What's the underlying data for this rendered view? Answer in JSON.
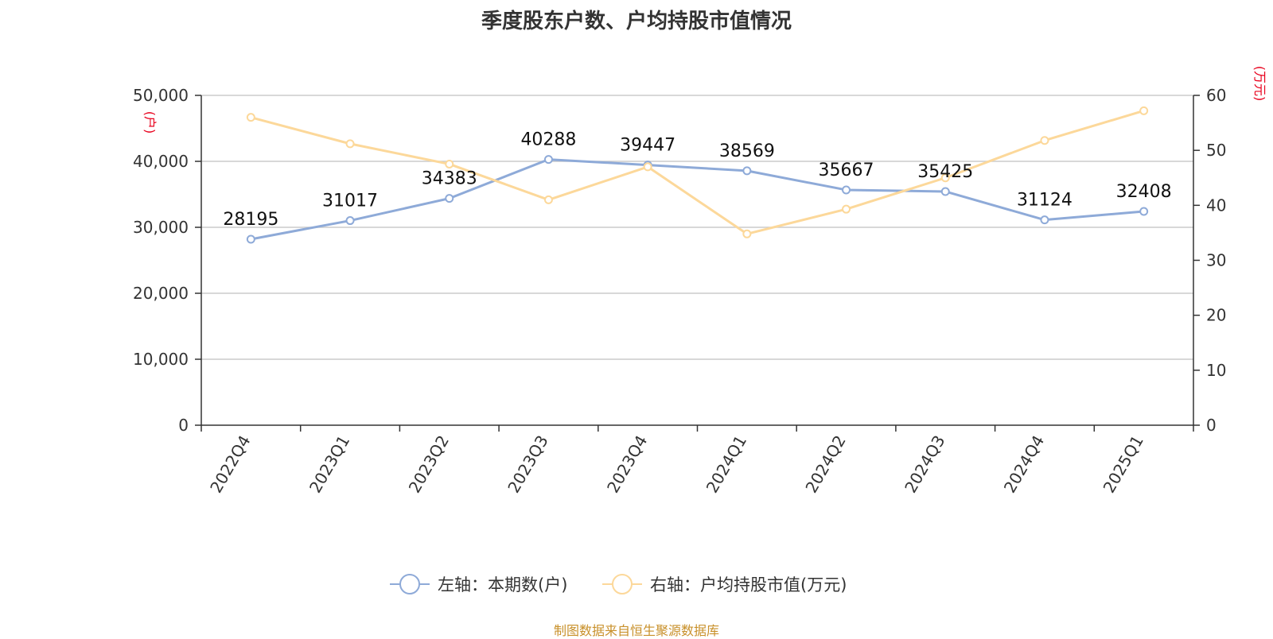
{
  "chart_data": {
    "type": "line",
    "title": "季度股东户数、户均持股市值情况",
    "categories": [
      "2022Q4",
      "2023Q1",
      "2023Q2",
      "2023Q3",
      "2023Q4",
      "2024Q1",
      "2024Q2",
      "2024Q3",
      "2024Q4",
      "2025Q1"
    ],
    "series": [
      {
        "name": "左轴：本期数(户)",
        "axis": "left",
        "color": "#8eaad8",
        "values": [
          28195,
          31017,
          34383,
          40288,
          39447,
          38569,
          35667,
          35425,
          31124,
          32408
        ],
        "labels": [
          "28195",
          "31017",
          "34383",
          "40288",
          "39447",
          "38569",
          "35667",
          "35425",
          "31124",
          "32408"
        ]
      },
      {
        "name": "右轴：户均持股市值(万元)",
        "axis": "right",
        "color": "#fcd89a",
        "values": [
          56.0,
          51.2,
          47.5,
          41.0,
          47.0,
          34.8,
          39.3,
          45.0,
          51.8,
          57.2
        ]
      }
    ],
    "left_axis": {
      "unit": "(户)",
      "ylim": [
        0,
        50000
      ],
      "ticks": [
        0,
        10000,
        20000,
        30000,
        40000,
        50000
      ],
      "tick_labels": [
        "0",
        "10,000",
        "20,000",
        "30,000",
        "40,000",
        "50,000"
      ]
    },
    "right_axis": {
      "unit": "(万元)",
      "ylim": [
        0,
        60
      ],
      "ticks": [
        0,
        10,
        20,
        30,
        40,
        50,
        60
      ],
      "tick_labels": [
        "0",
        "10",
        "20",
        "30",
        "40",
        "50",
        "60"
      ]
    },
    "grid": true,
    "legend_position": "bottom"
  },
  "source": "制图数据来自恒生聚源数据库"
}
